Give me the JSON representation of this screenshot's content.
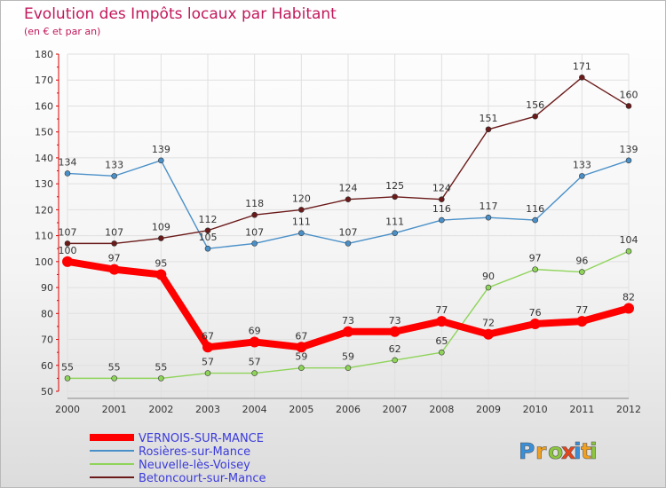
{
  "chart_data": {
    "type": "line",
    "title": "Evolution des Impôts locaux par Habitant",
    "subtitle": "(en € et par an)",
    "xlabel": "",
    "ylabel": "",
    "ylim": [
      50,
      180
    ],
    "yticks": [
      50,
      60,
      70,
      80,
      90,
      100,
      110,
      120,
      130,
      140,
      150,
      160,
      170,
      180
    ],
    "x": [
      "2000",
      "2001",
      "2002",
      "2003",
      "2004",
      "2005",
      "2006",
      "2007",
      "2008",
      "2009",
      "2010",
      "2011",
      "2012"
    ],
    "series": [
      {
        "name": "VERNOIS-SUR-MANCE",
        "color": "#ff0000",
        "values": [
          100,
          97,
          95,
          67,
          69,
          67,
          73,
          73,
          77,
          72,
          76,
          77,
          82
        ]
      },
      {
        "name": "Rosières-sur-Mance",
        "color": "#4a90c8",
        "values": [
          134,
          133,
          139,
          105,
          107,
          111,
          107,
          111,
          116,
          117,
          116,
          133,
          139
        ]
      },
      {
        "name": "Neuvelle-lès-Voisey",
        "color": "#8fd45a",
        "values": [
          55,
          55,
          55,
          57,
          57,
          59,
          59,
          62,
          65,
          90,
          97,
          96,
          104
        ]
      },
      {
        "name": "Betoncourt-sur-Mance",
        "color": "#6b1a1a",
        "values": [
          107,
          107,
          109,
          112,
          118,
          120,
          124,
          125,
          124,
          151,
          156,
          171,
          160
        ]
      }
    ]
  },
  "brand": {
    "letters": [
      "P",
      "r",
      "o",
      "x",
      "i",
      "t",
      "i"
    ],
    "colors": [
      "#3a8fd9",
      "#f0a020",
      "#8cc63f",
      "#e8441a",
      "#3a8fd9",
      "#f0a020",
      "#8cc63f"
    ]
  }
}
